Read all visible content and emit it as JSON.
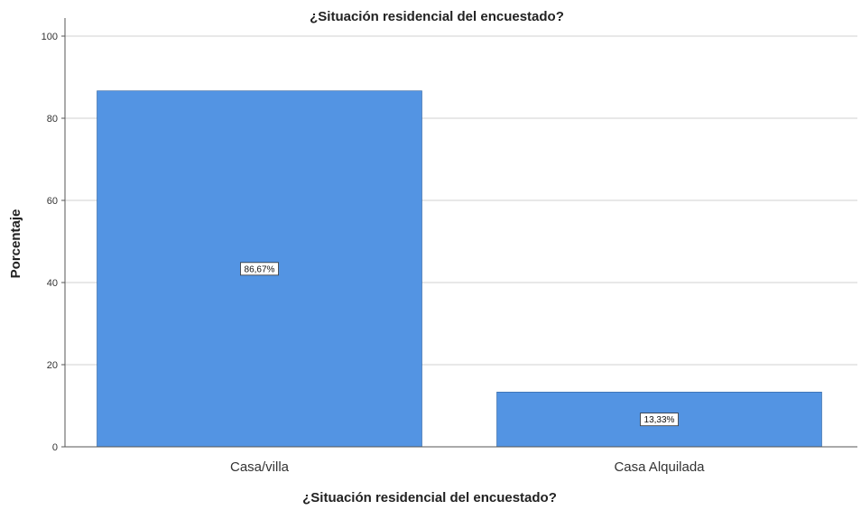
{
  "chart_data": {
    "type": "bar",
    "title": "¿Situación residencial del encuestado?",
    "xlabel": "¿Situación residencial del encuestado?",
    "ylabel": "Porcentaje",
    "categories": [
      "Casa/villa",
      "Casa Alquilada"
    ],
    "values": [
      86.67,
      13.33
    ],
    "data_labels": [
      "86,67%",
      "13,33%"
    ],
    "ylim": [
      0,
      100
    ],
    "yticks": [
      0,
      20,
      40,
      60,
      80,
      100
    ],
    "ytick_labels": [
      "0",
      "20",
      "40",
      "60",
      "80",
      "100"
    ],
    "grid": true,
    "legend": "none",
    "bar_color": "#5394e3"
  }
}
